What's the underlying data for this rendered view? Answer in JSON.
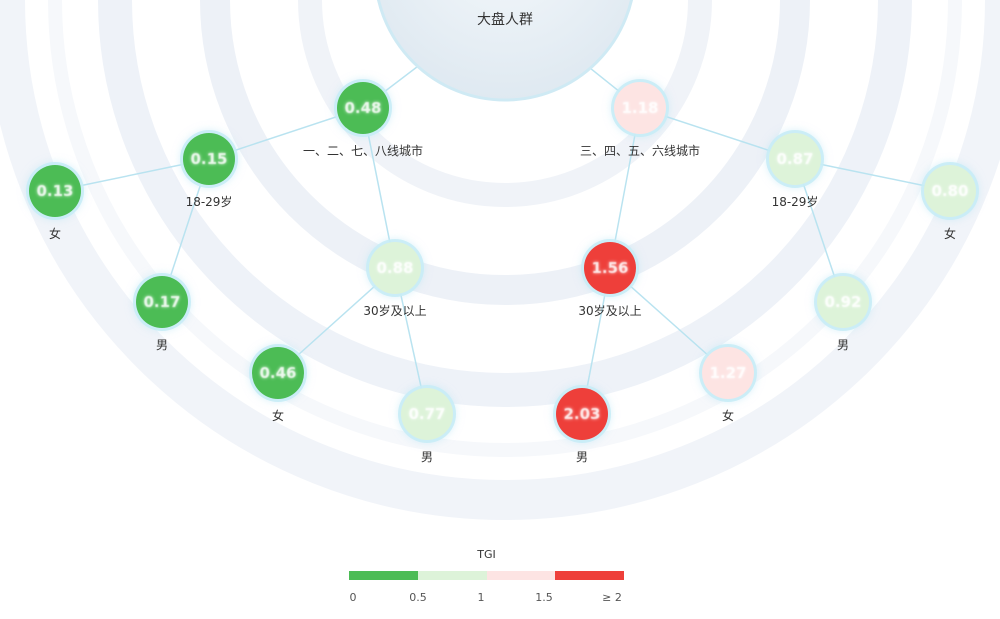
{
  "root": {
    "label": "大盘人群"
  },
  "nodes": [
    {
      "id": "n1",
      "value": "0.48",
      "label": "一、二、七、八线城市",
      "color": "#4cbc55"
    },
    {
      "id": "n2",
      "value": "1.18",
      "label": "三、四、五、六线城市",
      "color": "#fde4e3"
    },
    {
      "id": "n3",
      "value": "0.15",
      "label": "18-29岁",
      "color": "#4cbc55"
    },
    {
      "id": "n4",
      "value": "0.88",
      "label": "30岁及以上",
      "color": "#ddf3d9"
    },
    {
      "id": "n5",
      "value": "1.56",
      "label": "30岁及以上",
      "color": "#ee3f3a"
    },
    {
      "id": "n6",
      "value": "0.87",
      "label": "18-29岁",
      "color": "#ddf3d9"
    },
    {
      "id": "n7",
      "value": "0.13",
      "label": "女",
      "color": "#4cbc55"
    },
    {
      "id": "n8",
      "value": "0.17",
      "label": "男",
      "color": "#4cbc55"
    },
    {
      "id": "n9",
      "value": "0.46",
      "label": "女",
      "color": "#4cbc55"
    },
    {
      "id": "n10",
      "value": "0.77",
      "label": "男",
      "color": "#ddf3d9"
    },
    {
      "id": "n11",
      "value": "2.03",
      "label": "男",
      "color": "#ee3f3a"
    },
    {
      "id": "n12",
      "value": "1.27",
      "label": "女",
      "color": "#fde4e3"
    },
    {
      "id": "n13",
      "value": "0.92",
      "label": "男",
      "color": "#ddf3d9"
    },
    {
      "id": "n14",
      "value": "0.80",
      "label": "女",
      "color": "#ddf3d9"
    }
  ],
  "edges": [
    [
      "root",
      "n1"
    ],
    [
      "root",
      "n2"
    ],
    [
      "n1",
      "n3"
    ],
    [
      "n1",
      "n4"
    ],
    [
      "n3",
      "n7"
    ],
    [
      "n3",
      "n8"
    ],
    [
      "n4",
      "n9"
    ],
    [
      "n4",
      "n10"
    ],
    [
      "n2",
      "n5"
    ],
    [
      "n2",
      "n6"
    ],
    [
      "n5",
      "n11"
    ],
    [
      "n5",
      "n12"
    ],
    [
      "n6",
      "n13"
    ],
    [
      "n6",
      "n14"
    ]
  ],
  "legend": {
    "title": "TGI",
    "ticks": [
      "0",
      "0.5",
      "1",
      "1.5",
      "≥ 2"
    ],
    "segment_colors": [
      "#4cbc55",
      "#ddf3d9",
      "#fde4e3",
      "#ee3f3a"
    ]
  },
  "colors": {
    "edge": "#b9e3f0",
    "ring": "#eaf1f7"
  }
}
